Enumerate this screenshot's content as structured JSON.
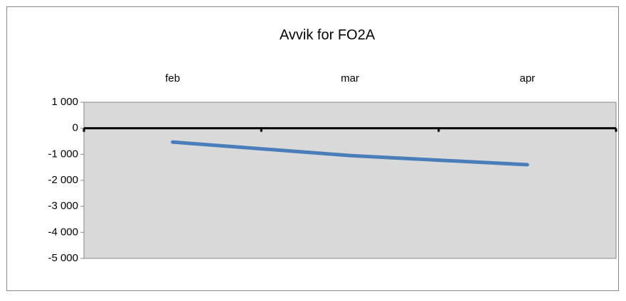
{
  "chart_data": {
    "type": "line",
    "title": "Avvik for FO2A",
    "categories": [
      "feb",
      "mar",
      "apr"
    ],
    "series": [
      {
        "name": "FO2A",
        "color": "#4a7ebb",
        "values": [
          -530,
          -1050,
          -1400
        ]
      }
    ],
    "ylim": [
      -5000,
      1000
    ],
    "yticks": [
      {
        "value": -5000,
        "label": "-5 000"
      },
      {
        "value": -4000,
        "label": "-4 000"
      },
      {
        "value": -3000,
        "label": "-3 000"
      },
      {
        "value": -2000,
        "label": "-2 000"
      },
      {
        "value": -1000,
        "label": "-1 000"
      },
      0,
      {
        "value": 1000,
        "label": "1 000"
      }
    ],
    "grid": false,
    "legend": false,
    "plot_background": "#d9d9d9"
  }
}
